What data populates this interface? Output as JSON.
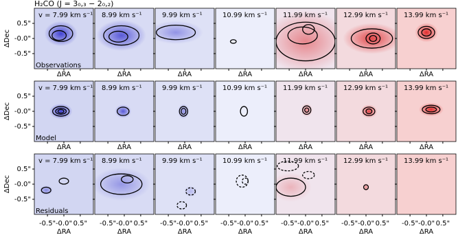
{
  "chart_data": {
    "type": "channel_map",
    "title": "H₂CO (J = 3₀,₃ − 2₀,₂)",
    "velocities": [
      7.99,
      8.99,
      9.99,
      10.99,
      11.99,
      12.99,
      13.99
    ],
    "value_labels": [
      "v = 7.99 km s⁻¹",
      "8.99 km s⁻¹",
      "9.99 km s⁻¹",
      "10.99 km s⁻¹",
      "11.99 km s⁻¹",
      "12.99 km s⁻¹",
      "13.99 km s⁻¹"
    ],
    "rows": [
      "Observations",
      "Model",
      "Residuals"
    ],
    "xlabel": "ΔRA",
    "ylabel": "ΔDec",
    "xlim": [
      -0.9,
      0.9
    ],
    "ylim": [
      -1.0,
      1.0
    ],
    "xticks": [
      {
        "value": -0.5,
        "label": "-0.5\""
      },
      {
        "value": 0,
        "label": "-0.0\""
      },
      {
        "value": 0.5,
        "label": "0.5\""
      }
    ],
    "yticks": [
      {
        "value": 0.5,
        "label": "0.5\""
      },
      {
        "value": 0,
        "label": "-0.0\""
      },
      {
        "value": -0.5,
        "label": "-0.5\""
      }
    ]
  }
}
